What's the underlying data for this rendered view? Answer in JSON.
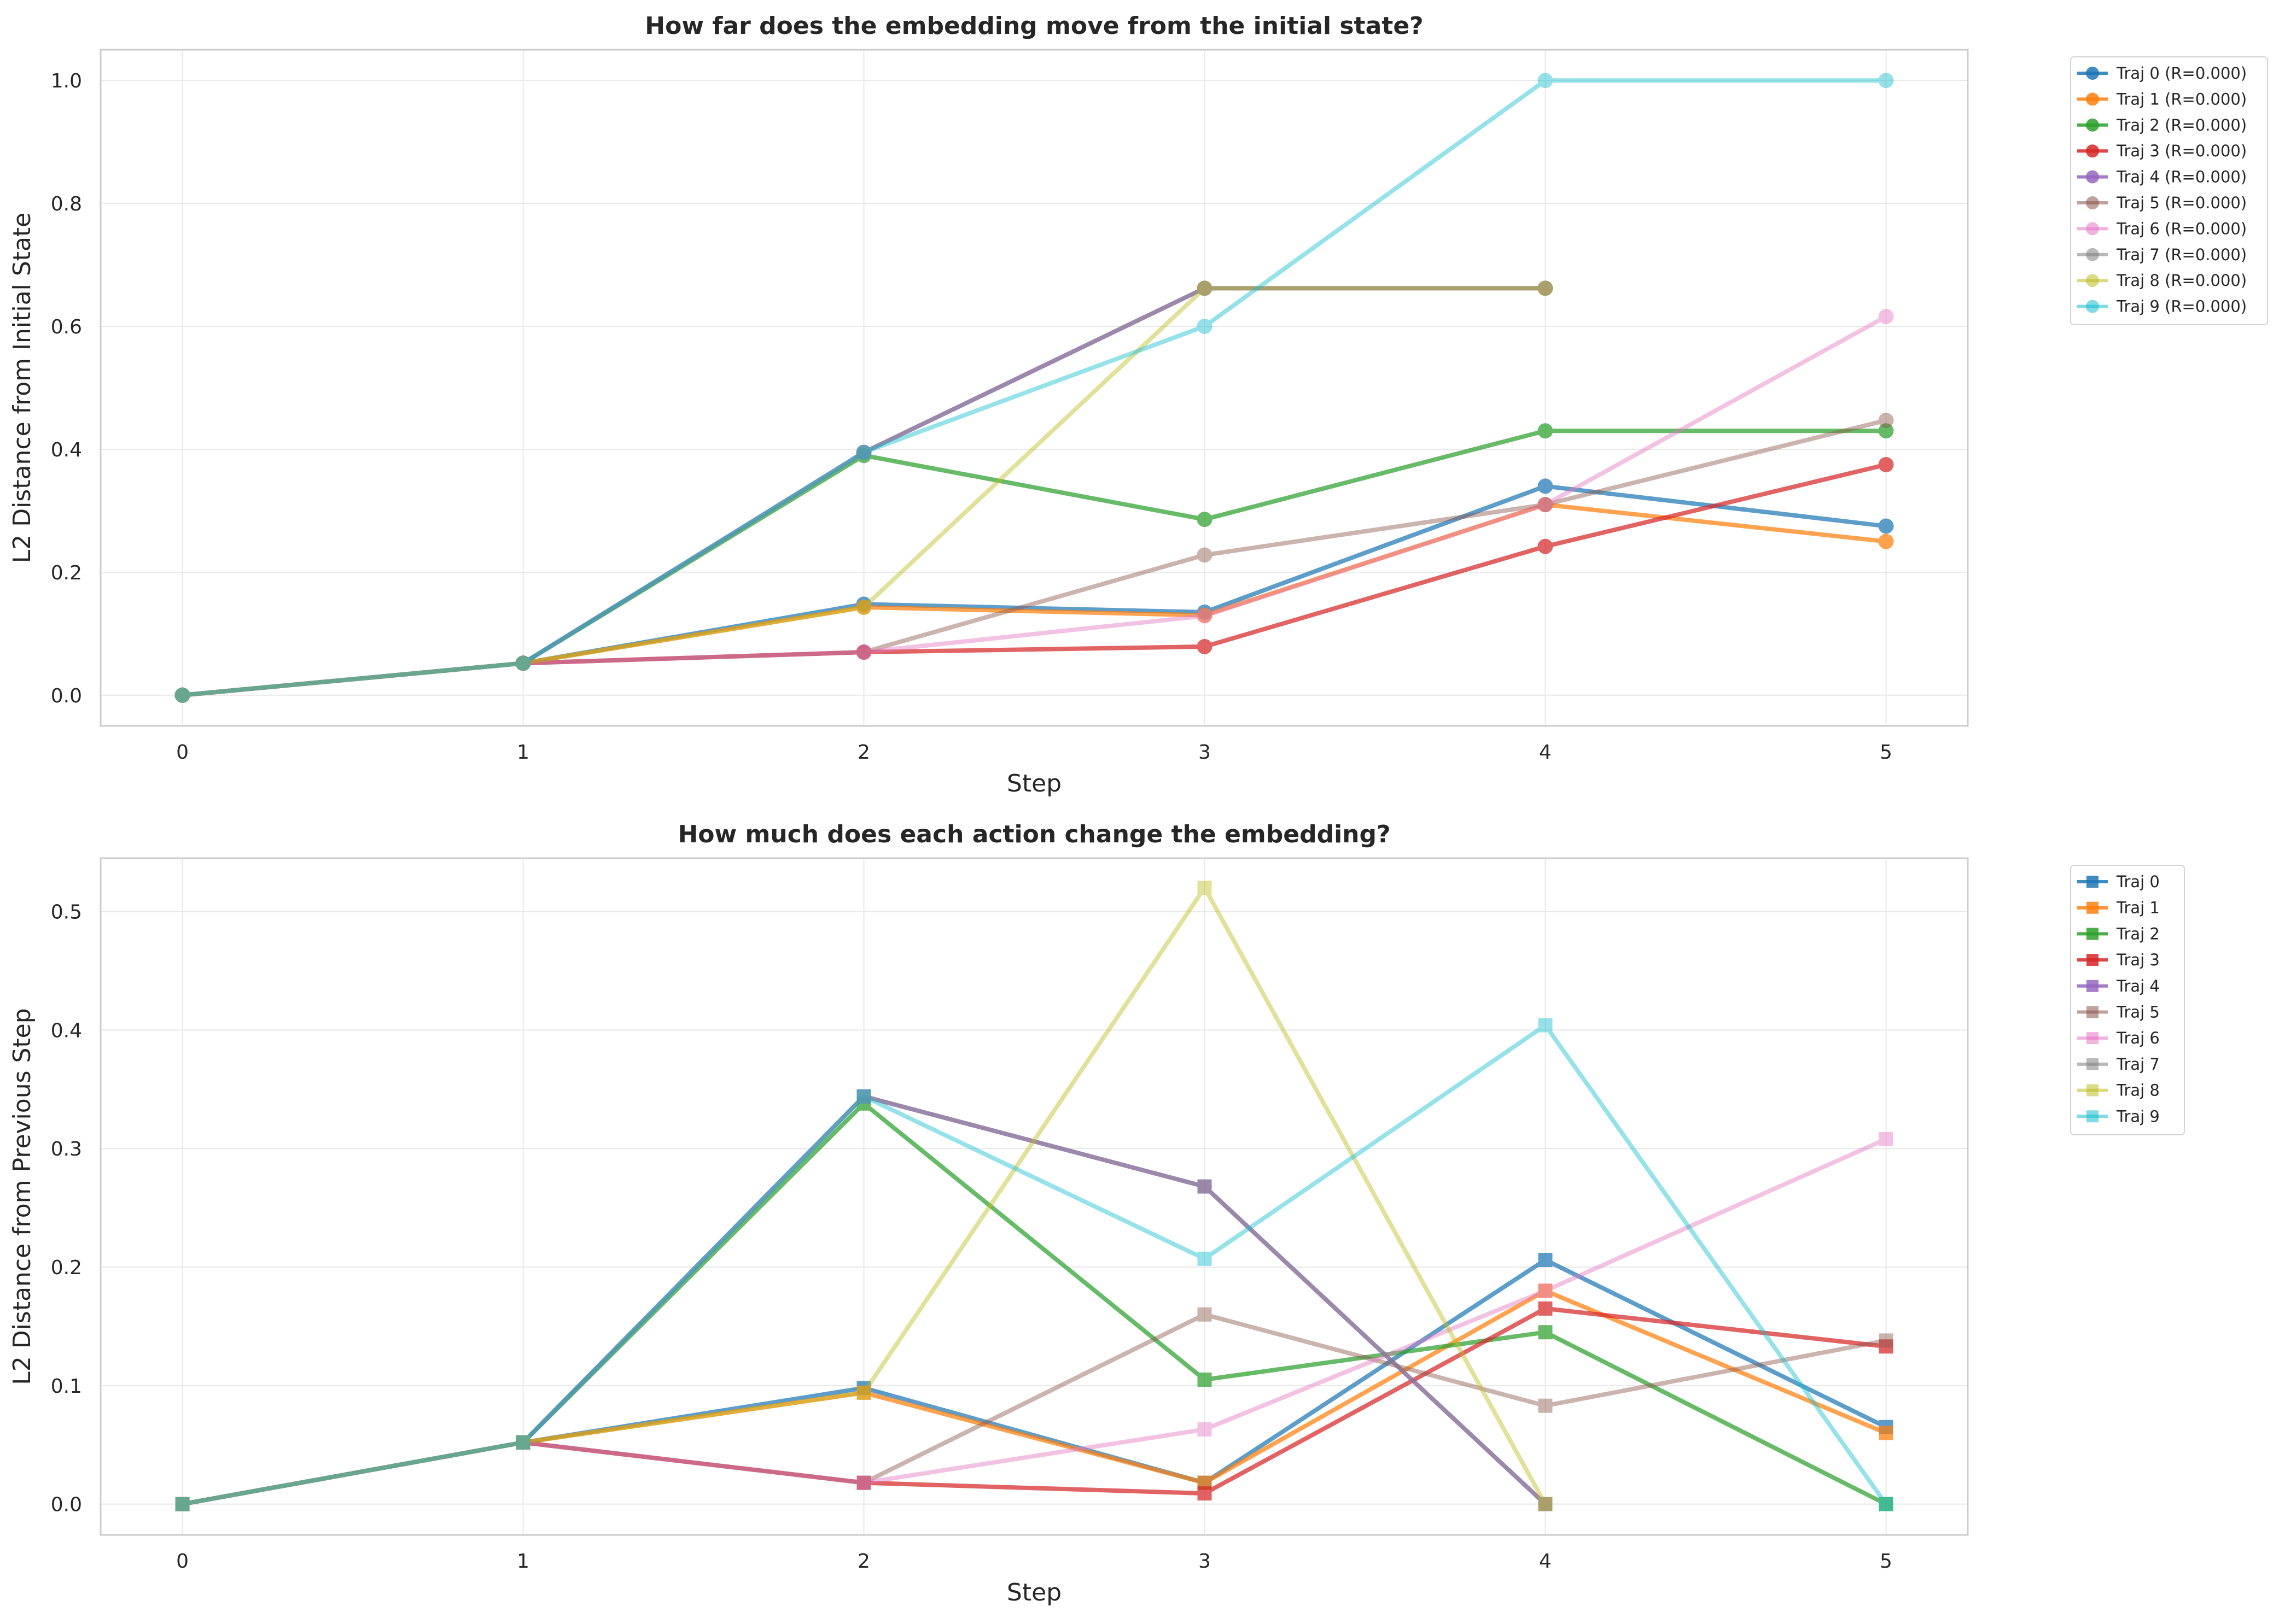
{
  "chart_data": [
    {
      "type": "line",
      "title": "How far does the embedding move from the initial state?",
      "xlabel": "Step",
      "ylabel": "L2 Distance from Initial State",
      "x": [
        0,
        1,
        2,
        3,
        4,
        5
      ],
      "xticks": [
        "0",
        "1",
        "2",
        "3",
        "4",
        "5"
      ],
      "yticks": [
        "0.0",
        "0.2",
        "0.4",
        "0.6",
        "0.8",
        "1.0"
      ],
      "xlim": [
        -0.24,
        5.24
      ],
      "ylim": [
        -0.05,
        1.05
      ],
      "grid": true,
      "legend_position": "outside-top-right",
      "marker": "circle",
      "series": [
        {
          "name": "Traj 0 (R=0.000)",
          "color": "#1f77b4",
          "values": [
            0.0,
            0.052,
            0.148,
            0.135,
            0.34,
            0.275
          ]
        },
        {
          "name": "Traj 1 (R=0.000)",
          "color": "#ff7f0e",
          "values": [
            0.0,
            0.052,
            0.143,
            0.13,
            0.31,
            0.25
          ]
        },
        {
          "name": "Traj 2 (R=0.000)",
          "color": "#2ca02c",
          "values": [
            0.0,
            0.052,
            0.39,
            0.286,
            0.43,
            0.43
          ]
        },
        {
          "name": "Traj 3 (R=0.000)",
          "color": "#d62728",
          "values": [
            0.0,
            0.052,
            0.07,
            0.079,
            0.242,
            0.375
          ]
        },
        {
          "name": "Traj 4 (R=0.000)",
          "color": "#9467bd",
          "values": [
            0.0,
            0.052,
            0.395,
            0.662,
            0.662,
            null
          ]
        },
        {
          "name": "Traj 5 (R=0.000)",
          "color": "#8c564b",
          "values": [
            0.0,
            0.052,
            0.07,
            0.228,
            0.31,
            0.447
          ]
        },
        {
          "name": "Traj 6 (R=0.000)",
          "color": "#e377c2",
          "values": [
            0.0,
            0.052,
            0.07,
            0.129,
            0.31,
            0.616
          ]
        },
        {
          "name": "Traj 7 (R=0.000)",
          "color": "#7f7f7f",
          "values": [
            0.0,
            0.052,
            0.395,
            0.662,
            0.662,
            null
          ]
        },
        {
          "name": "Traj 8 (R=0.000)",
          "color": "#bcbd22",
          "values": [
            0.0,
            0.052,
            0.143,
            0.662,
            0.662,
            null
          ]
        },
        {
          "name": "Traj 9 (R=0.000)",
          "color": "#17becf",
          "values": [
            0.0,
            0.052,
            0.395,
            0.6,
            1.0,
            1.0
          ]
        }
      ]
    },
    {
      "type": "line",
      "title": "How much does each action change the embedding?",
      "xlabel": "Step",
      "ylabel": "L2 Distance from Previous Step",
      "x": [
        0,
        1,
        2,
        3,
        4,
        5
      ],
      "xticks": [
        "0",
        "1",
        "2",
        "3",
        "4",
        "5"
      ],
      "yticks": [
        "0.0",
        "0.1",
        "0.2",
        "0.3",
        "0.4",
        "0.5"
      ],
      "xlim": [
        -0.24,
        5.24
      ],
      "ylim": [
        -0.026,
        0.545
      ],
      "grid": true,
      "legend_position": "outside-top-right",
      "marker": "square",
      "series": [
        {
          "name": "Traj 0",
          "color": "#1f77b4",
          "values": [
            0.0,
            0.052,
            0.098,
            0.018,
            0.206,
            0.065
          ]
        },
        {
          "name": "Traj 1",
          "color": "#ff7f0e",
          "values": [
            0.0,
            0.052,
            0.094,
            0.018,
            0.18,
            0.06
          ]
        },
        {
          "name": "Traj 2",
          "color": "#2ca02c",
          "values": [
            0.0,
            0.052,
            0.338,
            0.105,
            0.145,
            0.0
          ]
        },
        {
          "name": "Traj 3",
          "color": "#d62728",
          "values": [
            0.0,
            0.052,
            0.018,
            0.009,
            0.165,
            0.133
          ]
        },
        {
          "name": "Traj 4",
          "color": "#9467bd",
          "values": [
            0.0,
            0.052,
            0.344,
            0.268,
            0.0,
            null
          ]
        },
        {
          "name": "Traj 5",
          "color": "#8c564b",
          "values": [
            0.0,
            0.052,
            0.018,
            0.16,
            0.083,
            0.138
          ]
        },
        {
          "name": "Traj 6",
          "color": "#e377c2",
          "values": [
            0.0,
            0.052,
            0.018,
            0.063,
            0.18,
            0.308
          ]
        },
        {
          "name": "Traj 7",
          "color": "#7f7f7f",
          "values": [
            0.0,
            0.052,
            0.344,
            0.268,
            0.0,
            null
          ]
        },
        {
          "name": "Traj 8",
          "color": "#bcbd22",
          "values": [
            0.0,
            0.052,
            0.094,
            0.52,
            0.0,
            null
          ]
        },
        {
          "name": "Traj 9",
          "color": "#17becf",
          "values": [
            0.0,
            0.052,
            0.344,
            0.207,
            0.404,
            0.0
          ]
        }
      ]
    }
  ]
}
